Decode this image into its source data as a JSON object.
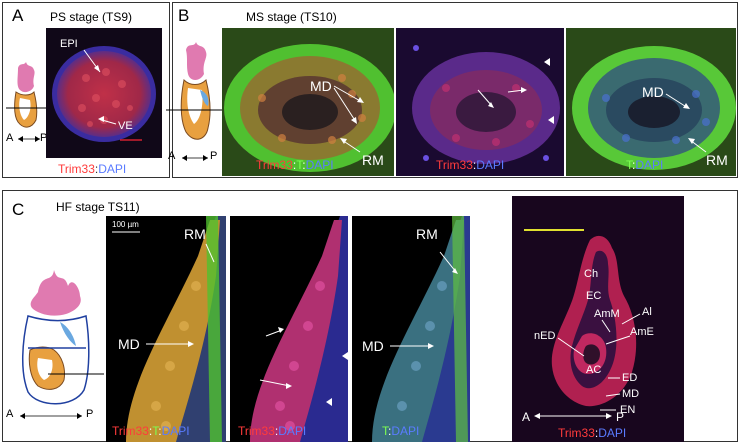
{
  "panel_a": {
    "letter": "A",
    "title": "PS stage (TS9)",
    "labels": {
      "epi": "EPI",
      "ve": "VE"
    },
    "caption": {
      "part1": "Trim33",
      "sep": ":",
      "part2": "DAPI"
    },
    "axis": {
      "a": "A",
      "p": "P"
    }
  },
  "panel_b": {
    "letter": "B",
    "title": "MS stage (TS10)",
    "axis": {
      "a": "A",
      "p": "P"
    },
    "img1": {
      "md": "MD",
      "rm": "RM",
      "cap1": "Trim33",
      "sep1": ":",
      "cap2": "T",
      "sep2": ":",
      "cap3": "DAPI"
    },
    "img2": {
      "cap1": "Trim33",
      "sep": ":",
      "cap2": "DAPI"
    },
    "img3": {
      "md": "MD",
      "rm": "RM",
      "cap1": "T",
      "sep": ":",
      "cap2": "DAPI"
    }
  },
  "panel_c": {
    "letter": "C",
    "title": "HF stage TS11)",
    "axis": {
      "a": "A",
      "p": "P"
    },
    "img1": {
      "scale": "100 µm",
      "rm": "RM",
      "md": "MD",
      "cap1": "Trim33",
      "sep1": ":",
      "cap2": "T",
      "sep2": ":",
      "cap3": "DAPI"
    },
    "img2": {
      "cap1": "Trim33",
      "sep": ":",
      "cap2": "DAPI"
    },
    "img3": {
      "rm": "RM",
      "md": "MD",
      "cap1": "T",
      "sep": ":",
      "cap2": "DAPI"
    },
    "img4": {
      "labels": {
        "ch": "Ch",
        "ec": "EC",
        "amm": "AmM",
        "al": "Al",
        "ame": "AmE",
        "ned": "nED",
        "ac": "AC",
        "ed": "ED",
        "md": "MD",
        "en": "EN"
      },
      "axis": {
        "a": "A",
        "p": "P"
      },
      "cap1": "Trim33",
      "sep": ":",
      "cap2": "DAPI"
    }
  },
  "colors": {
    "red": "#ff3b3b",
    "green": "#7dff52",
    "blue": "#5a7bff",
    "pink": "#e07ab0",
    "orange": "#e8a040",
    "lightblue": "#6aa8e0"
  }
}
